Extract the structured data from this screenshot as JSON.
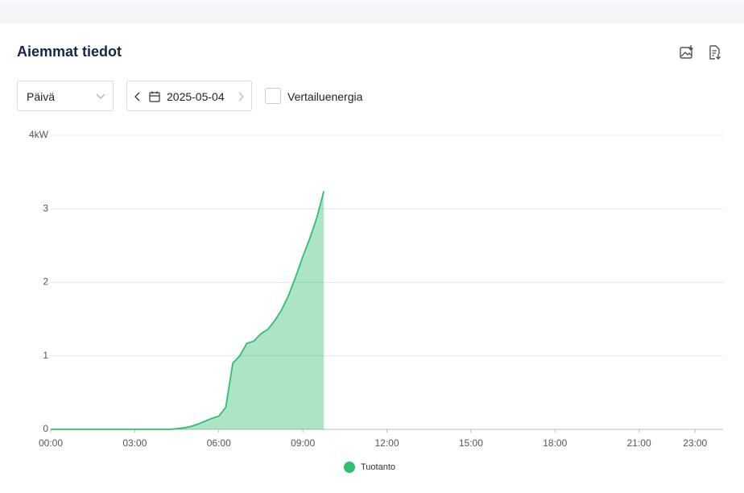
{
  "panel": {
    "title": "Aiemmat tiedot",
    "period": "Päivä",
    "date": "2025-05-04",
    "compare_label": "Vertailuenergia"
  },
  "chart_data": {
    "type": "area",
    "x": [
      0,
      0.25,
      0.5,
      0.75,
      1,
      1.25,
      1.5,
      1.75,
      2,
      2.25,
      2.5,
      2.75,
      3,
      3.25,
      3.5,
      3.75,
      4,
      4.25,
      4.5,
      4.75,
      5,
      5.25,
      5.5,
      5.75,
      6,
      6.25,
      6.5,
      6.75,
      7,
      7.25,
      7.5,
      7.75,
      8,
      8.25,
      8.5,
      8.75,
      9,
      9.25,
      9.5,
      9.75
    ],
    "series": [
      {
        "name": "Tuotanto",
        "color": "#2fbf6e",
        "values": [
          0,
          0,
          0,
          0,
          0,
          0,
          0,
          0,
          0,
          0,
          0,
          0,
          0,
          0,
          0,
          0,
          0,
          0,
          0.01,
          0.02,
          0.04,
          0.07,
          0.11,
          0.15,
          0.18,
          0.3,
          0.9,
          1.0,
          1.17,
          1.2,
          1.3,
          1.36,
          1.48,
          1.63,
          1.83,
          2.08,
          2.35,
          2.6,
          2.88,
          3.24
        ]
      }
    ],
    "xlim": [
      0,
      24
    ],
    "xticks": [
      {
        "value": 0,
        "label": "00:00"
      },
      {
        "value": 3,
        "label": "03:00"
      },
      {
        "value": 6,
        "label": "06:00"
      },
      {
        "value": 9,
        "label": "09:00"
      },
      {
        "value": 12,
        "label": "12:00"
      },
      {
        "value": 15,
        "label": "15:00"
      },
      {
        "value": 18,
        "label": "18:00"
      },
      {
        "value": 21,
        "label": "21:00"
      },
      {
        "value": 23,
        "label": "23:00"
      }
    ],
    "ylim": [
      0,
      4
    ],
    "yticks": [
      0,
      1,
      2,
      3,
      {
        "value": 4,
        "label": "4kW"
      }
    ],
    "grid": true,
    "legend": "bottom"
  }
}
